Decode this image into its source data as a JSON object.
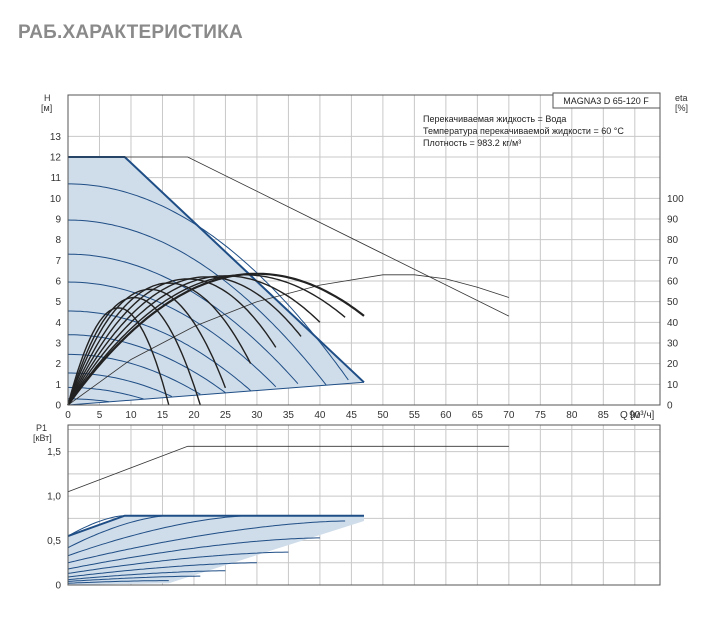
{
  "page": {
    "title": "РАБ.ХАРАКТЕРИСТИКА"
  },
  "colors": {
    "envelope_fill": "#cfdce9",
    "envelope_line": "#1f4e86",
    "eta_curve": "#222222",
    "grid": "#c8c8c8"
  },
  "chart_data": [
    {
      "type": "line",
      "title": "",
      "model_label": "MAGNA3 D 65-120 F",
      "info_lines": [
        "Перекачиваемая жидкость = Вода",
        "Температура перекачиваемой жидкости = 60 °C",
        "Плотность = 983.2 кг/м³"
      ],
      "xlabel": "Q [м³/ч]",
      "ylabel": [
        "H",
        "[м]"
      ],
      "y2label": [
        "eta",
        "[%]"
      ],
      "xlim": [
        0,
        94
      ],
      "ylim": [
        0,
        15
      ],
      "y2lim": [
        0,
        150
      ],
      "x_ticks": [
        0,
        5,
        10,
        15,
        20,
        25,
        30,
        35,
        40,
        45,
        50,
        55,
        60,
        65,
        70,
        75,
        80,
        85,
        90
      ],
      "y_ticks": [
        0,
        1,
        2,
        3,
        4,
        5,
        6,
        7,
        8,
        9,
        10,
        11,
        12,
        13
      ],
      "y2_ticks": [
        0,
        10,
        20,
        30,
        40,
        50,
        60,
        70,
        80,
        90,
        100
      ],
      "envelope": {
        "max_curve": [
          [
            0,
            12
          ],
          [
            9,
            12
          ],
          [
            47,
            1.1
          ]
        ],
        "min_q": 0,
        "lower": [
          [
            0,
            0
          ],
          [
            47,
            1.1
          ]
        ]
      },
      "speed_curves_H0": [
        10.7,
        8.95,
        7.3,
        5.95,
        4.55,
        3.4,
        2.45,
        1.55,
        0.85,
        0.3
      ],
      "eta_curves": [
        {
          "eta_max": 63.5,
          "q_peak": 30,
          "q_end": 47
        },
        {
          "eta_max": 63,
          "q_peak": 28,
          "q_end": 44
        },
        {
          "eta_max": 62.5,
          "q_peak": 25,
          "q_end": 40
        },
        {
          "eta_max": 62,
          "q_peak": 22,
          "q_end": 37
        },
        {
          "eta_max": 61,
          "q_peak": 19,
          "q_end": 33
        },
        {
          "eta_max": 59,
          "q_peak": 16,
          "q_end": 29
        },
        {
          "eta_max": 56,
          "q_peak": 13,
          "q_end": 25
        },
        {
          "eta_max": 52,
          "q_peak": 10.5,
          "q_end": 21
        },
        {
          "eta_max": 47,
          "q_peak": 8,
          "q_end": 16
        }
      ],
      "eta_max_line": [
        [
          0,
          0
        ],
        [
          10,
          22
        ],
        [
          20,
          38
        ],
        [
          30,
          50
        ],
        [
          40,
          58
        ],
        [
          50,
          63
        ],
        [
          55,
          63
        ],
        [
          60,
          61
        ],
        [
          65,
          57
        ],
        [
          70,
          52
        ]
      ],
      "system_line": [
        [
          0,
          12
        ],
        [
          19,
          12
        ],
        [
          70,
          4.3
        ]
      ]
    },
    {
      "type": "line",
      "ylabel": [
        "P1",
        "[кВт]"
      ],
      "xlim": [
        0,
        94
      ],
      "ylim": [
        0,
        1.8
      ],
      "y_ticks": [
        0,
        0.5,
        1.0,
        1.5
      ],
      "y_tick_labels": [
        "0",
        "0,5",
        "1,0",
        "1,5"
      ],
      "power_max": [
        [
          0,
          1.05
        ],
        [
          19,
          1.56
        ],
        [
          70,
          1.56
        ]
      ],
      "envelope_top": [
        [
          0,
          0.55
        ],
        [
          9,
          0.78
        ],
        [
          47,
          0.78
        ]
      ],
      "power_curves": [
        {
          "p0": 0.55,
          "q_end": 9,
          "p_end": 0.78
        },
        {
          "p0": 0.42,
          "q_end": 16,
          "p_end": 0.78
        },
        {
          "p0": 0.33,
          "q_end": 29,
          "p_end": 0.78
        },
        {
          "p0": 0.25,
          "q_end": 44,
          "p_end": 0.72
        },
        {
          "p0": 0.18,
          "q_end": 40,
          "p_end": 0.53
        },
        {
          "p0": 0.13,
          "q_end": 35,
          "p_end": 0.37
        },
        {
          "p0": 0.09,
          "q_end": 30,
          "p_end": 0.25
        },
        {
          "p0": 0.06,
          "q_end": 25,
          "p_end": 0.16
        },
        {
          "p0": 0.04,
          "q_end": 21,
          "p_end": 0.1
        },
        {
          "p0": 0.02,
          "q_end": 16,
          "p_end": 0.05
        }
      ]
    }
  ]
}
